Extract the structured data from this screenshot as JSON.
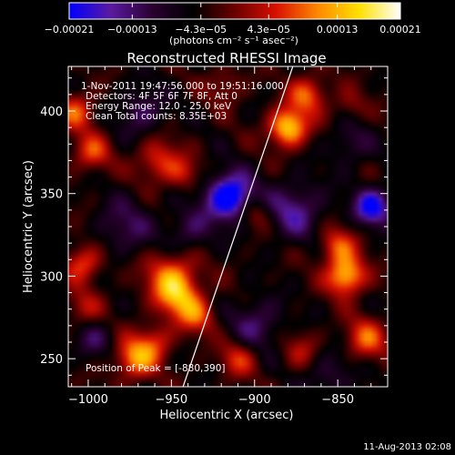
{
  "chart_data": {
    "type": "heatmap",
    "title": "Reconstructed RHESSI Image",
    "xlabel": "Heliocentric X (arcsec)",
    "ylabel": "Heliocentric Y (arcsec)",
    "xlim": [
      -1012,
      -820
    ],
    "ylim": [
      233,
      427
    ],
    "x_ticks": [
      {
        "value": -1000,
        "label": "−1000"
      },
      {
        "value": -950,
        "label": "−950"
      },
      {
        "value": -900,
        "label": "−900"
      },
      {
        "value": -850,
        "label": "−850"
      }
    ],
    "y_ticks": [
      {
        "value": 250,
        "label": "250"
      },
      {
        "value": 300,
        "label": "300"
      },
      {
        "value": 350,
        "label": "350"
      },
      {
        "value": 400,
        "label": "400"
      }
    ],
    "colorbar": {
      "range": [
        -0.00021,
        0.00021
      ],
      "ticks": [
        {
          "value": -0.00021,
          "label": "−0.00021"
        },
        {
          "value": -0.00013,
          "label": "−0.00013"
        },
        {
          "value": -4.3e-05,
          "label": "−4.3e−05"
        },
        {
          "value": 4.3e-05,
          "label": "4.3e−05"
        },
        {
          "value": 0.00013,
          "label": "0.00013"
        },
        {
          "value": 0.00021,
          "label": "0.00021"
        }
      ],
      "unit_label": "(photons cm⁻² s⁻¹ asec⁻²)",
      "colors": [
        "#0000ff",
        "#5a1aa0",
        "#2a0030",
        "#000000",
        "#6a0000",
        "#d81000",
        "#ff8800",
        "#ffe000",
        "#ffffff"
      ]
    },
    "annotations": [
      "1-Nov-2011 19:47:56.000 to 19:51:16.000",
      "Detectors: 4F 5F 6F 7F 8F, Att 0",
      "Energy Range: 12.0 - 25.0 keV",
      "Clean     Total counts: 8.35E+03"
    ],
    "peak_label": "Position of Peak = [-880,390]",
    "peak": [
      -880,
      390
    ],
    "limb_line": [
      [
        -943,
        233
      ],
      [
        -877,
        427
      ]
    ],
    "features": [
      {
        "x": -915,
        "y": 348,
        "v": -1.0,
        "s": 10
      },
      {
        "x": -876,
        "y": 340,
        "v": -0.5,
        "s": 12
      },
      {
        "x": -829,
        "y": 342,
        "v": -0.8,
        "s": 8
      },
      {
        "x": -968,
        "y": 400,
        "v": -0.4,
        "s": 10
      },
      {
        "x": -978,
        "y": 330,
        "v": -0.35,
        "s": 12
      },
      {
        "x": -899,
        "y": 271,
        "v": -0.4,
        "s": 11
      },
      {
        "x": -855,
        "y": 240,
        "v": -0.3,
        "s": 10
      },
      {
        "x": -997,
        "y": 262,
        "v": -0.3,
        "s": 9
      },
      {
        "x": -940,
        "y": 327,
        "v": -0.35,
        "s": 10
      },
      {
        "x": -843,
        "y": 380,
        "v": -0.3,
        "s": 9
      },
      {
        "x": -1007,
        "y": 400,
        "v": 0.55,
        "s": 8
      },
      {
        "x": -998,
        "y": 375,
        "v": 0.5,
        "s": 8
      },
      {
        "x": -1003,
        "y": 308,
        "v": 0.55,
        "s": 8
      },
      {
        "x": -1003,
        "y": 280,
        "v": 0.35,
        "s": 8
      },
      {
        "x": -958,
        "y": 370,
        "v": 0.5,
        "s": 9
      },
      {
        "x": -943,
        "y": 362,
        "v": 0.35,
        "s": 7
      },
      {
        "x": -950,
        "y": 300,
        "v": 0.65,
        "s": 11
      },
      {
        "x": -946,
        "y": 287,
        "v": 0.55,
        "s": 9
      },
      {
        "x": -935,
        "y": 276,
        "v": 0.5,
        "s": 8
      },
      {
        "x": -972,
        "y": 250,
        "v": 0.7,
        "s": 9
      },
      {
        "x": -960,
        "y": 260,
        "v": 0.4,
        "s": 8
      },
      {
        "x": -880,
        "y": 390,
        "v": 0.95,
        "s": 8
      },
      {
        "x": -868,
        "y": 410,
        "v": 0.6,
        "s": 8
      },
      {
        "x": -845,
        "y": 300,
        "v": 0.9,
        "s": 8
      },
      {
        "x": -850,
        "y": 318,
        "v": 0.55,
        "s": 8
      },
      {
        "x": -833,
        "y": 262,
        "v": 0.55,
        "s": 9
      },
      {
        "x": -900,
        "y": 338,
        "v": 0.35,
        "s": 7
      },
      {
        "x": -910,
        "y": 250,
        "v": 0.45,
        "s": 8
      },
      {
        "x": -872,
        "y": 255,
        "v": 0.3,
        "s": 8
      },
      {
        "x": -918,
        "y": 415,
        "v": 0.3,
        "s": 8
      },
      {
        "x": -843,
        "y": 403,
        "v": 0.25,
        "s": 7
      }
    ]
  },
  "timestamp": "11-Aug-2013 02:08"
}
